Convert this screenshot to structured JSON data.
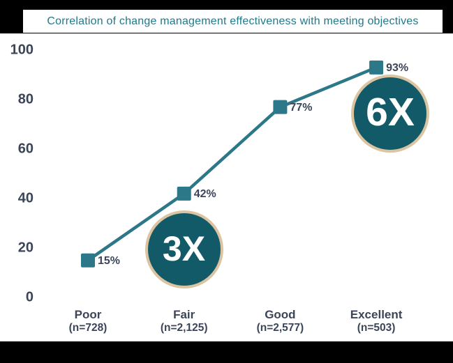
{
  "chart_data": {
    "type": "line",
    "title": "Correlation of change management effectiveness with meeting objectives",
    "categories": [
      "Poor",
      "Fair",
      "Good",
      "Excellent"
    ],
    "category_sublabels": [
      "(n=728)",
      "(n=2,125)",
      "(n=2,577)",
      "(n=503)"
    ],
    "values": [
      15,
      42,
      77,
      93
    ],
    "point_labels": [
      "15%",
      "42%",
      "77%",
      "93%"
    ],
    "yticks": [
      0,
      20,
      40,
      60,
      80,
      100
    ],
    "ylim": [
      0,
      100
    ],
    "xlabel": "",
    "ylabel": "",
    "grid": false,
    "legend": false,
    "annotations": [
      {
        "label": "3X",
        "anchor_category": "Fair"
      },
      {
        "label": "6X",
        "anchor_category": "Excellent"
      }
    ]
  },
  "colors": {
    "background": "#FFFFFF",
    "frame_bars": "#000000",
    "title_box_bg": "#FFFFFF",
    "title_text": "#21798B",
    "line": "#2C7889",
    "marker": "#2C7889",
    "axis_text": "#3B4557",
    "badge_fill": "#135A69",
    "badge_border": "#DBC4A1",
    "badge_text": "#FFFFFF"
  }
}
